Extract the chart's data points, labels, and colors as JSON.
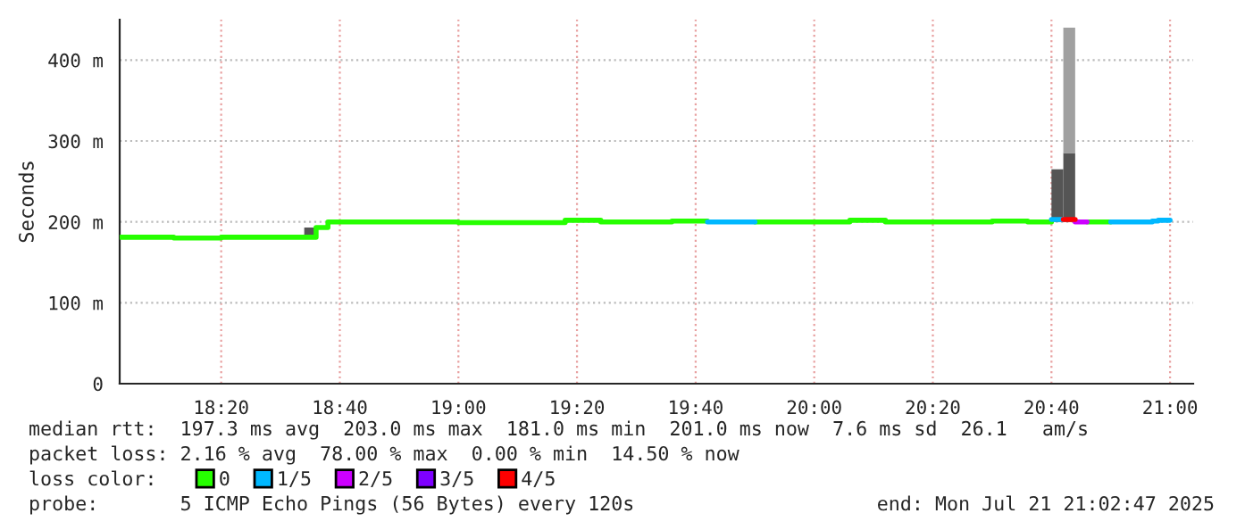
{
  "chart_data": {
    "type": "step",
    "ylabel": "Seconds",
    "xlim": [
      18.048,
      21.065
    ],
    "ylim": [
      0,
      450
    ],
    "xticks": [
      {
        "value": 18.3333,
        "label": "18:20"
      },
      {
        "value": 18.6667,
        "label": "18:40"
      },
      {
        "value": 19.0,
        "label": "19:00"
      },
      {
        "value": 19.3333,
        "label": "19:20"
      },
      {
        "value": 19.6667,
        "label": "19:40"
      },
      {
        "value": 20.0,
        "label": "20:00"
      },
      {
        "value": 20.3333,
        "label": "20:20"
      },
      {
        "value": 20.6667,
        "label": "20:40"
      },
      {
        "value": 21.0,
        "label": "21:00"
      }
    ],
    "yticks": [
      0,
      {
        "value": 100,
        "label": "100 m"
      },
      {
        "value": 200,
        "label": "200 m"
      },
      {
        "value": 300,
        "label": "300 m"
      },
      {
        "value": 400,
        "label": "400 m"
      }
    ],
    "grid": true,
    "legend": "bottom",
    "series": [
      {
        "type": "bar",
        "color": "#555555",
        "x": [
          18.5667,
          20.6667,
          20.7
        ],
        "base": [
          181,
          200,
          200
        ],
        "values": [
          12,
          65,
          85
        ]
      },
      {
        "type": "bar",
        "color": "#a0a0a0",
        "x": [
          20.7
        ],
        "base": [
          285
        ],
        "values": [
          155
        ]
      },
      {
        "name": "0",
        "color": "#26ff00",
        "x": [
          18.05,
          18.2,
          18.3333,
          18.6,
          18.6333,
          19.0,
          19.3,
          19.4,
          19.6,
          19.7,
          19.7001,
          19.8333,
          20.1,
          20.2,
          20.5,
          20.6,
          20.6667,
          20.6668,
          20.7667,
          20.8333
        ],
        "values": [
          181,
          180,
          181,
          193,
          200,
          199,
          202,
          200,
          201,
          201,
          null,
          200,
          202,
          200,
          201,
          200,
          200,
          null,
          200,
          200
        ]
      },
      {
        "name": "1/5",
        "color": "#00b8ff",
        "x": [
          19.7,
          19.8333,
          19.8334,
          20.6667,
          20.7,
          20.7001,
          20.8333,
          20.95,
          20.9667,
          21.0
        ],
        "values": [
          200,
          200,
          null,
          203,
          203,
          null,
          200,
          201,
          202,
          202
        ]
      },
      {
        "name": "2/5",
        "color": "#cc00ff",
        "x": [
          20.7333,
          20.7667
        ],
        "values": [
          200,
          200
        ]
      },
      {
        "name": "3/5",
        "color": "#7e00ff"
      },
      {
        "name": "4/5",
        "color": "#ff0000",
        "x": [
          20.7,
          20.7333
        ],
        "values": [
          203,
          203
        ]
      }
    ],
    "annotations": [
      "median rtt:  197.3 ms avg  203.0 ms max  181.0 ms min  201.0 ms now  7.6 ms sd  26.1   am/s",
      "packet loss: 2.16 % avg  78.00 % max  0.00 % min  14.50 % now",
      "loss color:",
      "probe:       5 ICMP Echo Pings (56 Bytes) every 120s",
      "end: Mon Jul 21 21:02:47 2025"
    ]
  }
}
